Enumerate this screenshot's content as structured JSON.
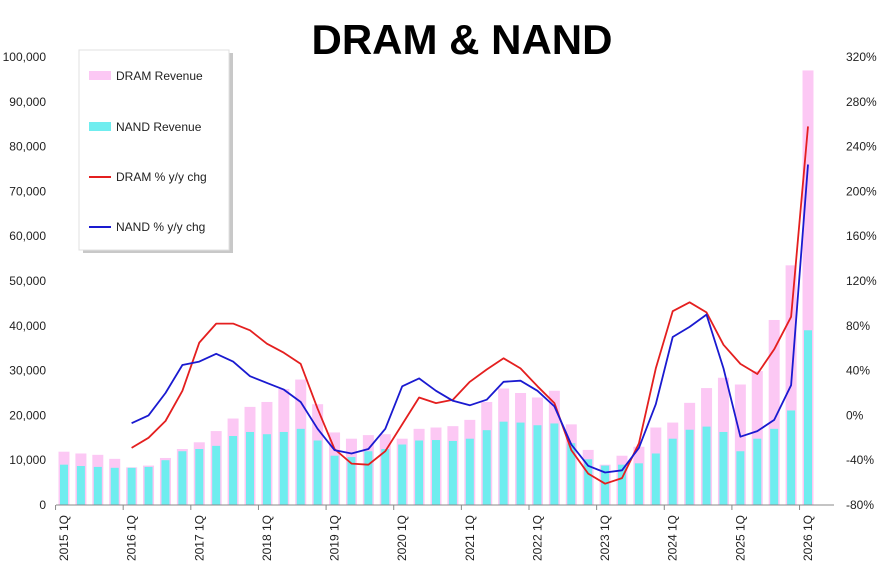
{
  "chart_data": {
    "type": "bar",
    "title": "DRAM & NAND",
    "xlabel": "",
    "ylabel": "",
    "y2label": "",
    "ylim": [
      0,
      100000
    ],
    "y2lim": [
      -0.8,
      3.2
    ],
    "y_ticks": [
      "0",
      "10,000",
      "20,000",
      "30,000",
      "40,000",
      "50,000",
      "60,000",
      "70,000",
      "80,000",
      "90,000",
      "100,000"
    ],
    "y2_ticks": [
      "-80%",
      "-40%",
      "0%",
      "40%",
      "80%",
      "120%",
      "160%",
      "200%",
      "240%",
      "280%",
      "320%"
    ],
    "x_labels": [
      "2015 1Q",
      "2016 1Q",
      "2017 1Q",
      "2018 1Q",
      "2019 1Q",
      "2020 1Q",
      "2021 1Q",
      "2022 1Q",
      "2023 1Q",
      "2024 1Q",
      "2025 1Q",
      "2026 1Q"
    ],
    "grid": false,
    "legend_position": "top-left",
    "categories": [
      "2015 1Q",
      "2015 2Q",
      "2015 3Q",
      "2015 4Q",
      "2016 1Q",
      "2016 2Q",
      "2016 3Q",
      "2016 4Q",
      "2017 1Q",
      "2017 2Q",
      "2017 3Q",
      "2017 4Q",
      "2018 1Q",
      "2018 2Q",
      "2018 3Q",
      "2018 4Q",
      "2019 1Q",
      "2019 2Q",
      "2019 3Q",
      "2019 4Q",
      "2020 1Q",
      "2020 2Q",
      "2020 3Q",
      "2020 4Q",
      "2021 1Q",
      "2021 2Q",
      "2021 3Q",
      "2021 4Q",
      "2022 1Q",
      "2022 2Q",
      "2022 3Q",
      "2022 4Q",
      "2023 1Q",
      "2023 2Q",
      "2023 3Q",
      "2023 4Q",
      "2024 1Q",
      "2024 2Q",
      "2024 3Q",
      "2024 4Q",
      "2025 1Q",
      "2025 2Q",
      "2025 3Q",
      "2025 4Q",
      "2026 1Q"
    ],
    "series": [
      {
        "name": "DRAM Revenue",
        "kind": "bar",
        "axis": "left",
        "color": "#fcc8f4",
        "values": [
          11900,
          11500,
          11200,
          10300,
          8400,
          8800,
          10500,
          12500,
          14000,
          16500,
          19300,
          21900,
          23000,
          25900,
          28000,
          22500,
          16200,
          14800,
          15600,
          15800,
          14800,
          17000,
          17300,
          17600,
          19000,
          23000,
          26000,
          25000,
          24000,
          25500,
          18000,
          12300,
          9000,
          11000,
          13000,
          17300,
          18400,
          22800,
          26100,
          28400,
          26900,
          29900,
          41300,
          53500,
          97000
        ]
      },
      {
        "name": "NAND Revenue",
        "kind": "bar",
        "axis": "left",
        "color": "#6fedef",
        "values": [
          9000,
          8700,
          8500,
          8300,
          8300,
          8500,
          10000,
          12000,
          12500,
          13200,
          15400,
          16300,
          15800,
          16300,
          17000,
          14400,
          11000,
          10700,
          12000,
          12500,
          13500,
          14400,
          14500,
          14300,
          14800,
          16700,
          18600,
          18400,
          17800,
          18200,
          13800,
          10200,
          8800,
          9000,
          9300,
          11500,
          14800,
          16800,
          17500,
          16300,
          12000,
          14800,
          17000,
          21100,
          39000
        ]
      },
      {
        "name": "DRAM % y/y chg",
        "kind": "line",
        "axis": "right",
        "color": "#e41f1f",
        "values": [
          null,
          null,
          null,
          null,
          -0.29,
          -0.2,
          -0.05,
          0.22,
          0.65,
          0.82,
          0.82,
          0.76,
          0.64,
          0.56,
          0.46,
          0.06,
          -0.3,
          -0.43,
          -0.44,
          -0.32,
          -0.08,
          0.16,
          0.11,
          0.14,
          0.3,
          0.41,
          0.51,
          0.42,
          0.26,
          0.11,
          -0.31,
          -0.52,
          -0.61,
          -0.56,
          -0.25,
          0.42,
          0.93,
          1.01,
          0.92,
          0.63,
          0.46,
          0.37,
          0.59,
          0.88,
          2.58
        ]
      },
      {
        "name": "NAND % y/y chg",
        "kind": "line",
        "axis": "right",
        "color": "#1a1ad0",
        "values": [
          null,
          null,
          null,
          null,
          -0.07,
          0.0,
          0.2,
          0.45,
          0.48,
          0.55,
          0.48,
          0.35,
          0.29,
          0.23,
          0.12,
          -0.12,
          -0.31,
          -0.34,
          -0.3,
          -0.12,
          0.26,
          0.33,
          0.22,
          0.13,
          0.09,
          0.14,
          0.3,
          0.31,
          0.22,
          0.08,
          -0.26,
          -0.45,
          -0.51,
          -0.49,
          -0.29,
          0.1,
          0.7,
          0.79,
          0.9,
          0.42,
          -0.19,
          -0.14,
          -0.04,
          0.27,
          2.24
        ]
      }
    ]
  }
}
